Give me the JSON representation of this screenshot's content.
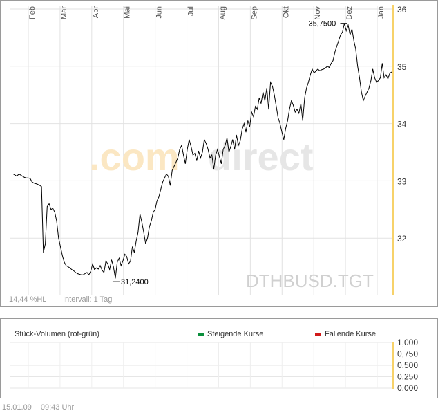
{
  "chart_data": [
    {
      "type": "line",
      "watermark": ".comdirect",
      "instrument": "DTHBUSD.TGT",
      "months": [
        "Feb",
        "Mär",
        "Apr",
        "Mai",
        "Jun",
        "Jul",
        "Aug",
        "Sep",
        "Okt",
        "Nov",
        "Dez",
        "Jan"
      ],
      "y_ticks": [
        32,
        33,
        34,
        35,
        36
      ],
      "ylim": [
        31.0,
        36.0
      ],
      "grid": true,
      "high_label": "35,7500",
      "low_label": "31,2400",
      "high_value": 35.75,
      "low_value": 31.24,
      "info_hl": "14,44 %HL",
      "info_interval": "Intervall: 1 Tag",
      "series": [
        {
          "values": [
            33.12,
            33.1,
            33.08,
            33.12,
            33.1,
            33.08,
            33.06,
            33.05,
            33.05,
            33.04,
            32.98,
            32.96,
            32.95,
            32.94,
            32.92,
            32.9,
            31.75,
            31.9,
            32.55,
            32.6,
            32.5,
            32.52,
            32.45,
            32.3,
            32.0,
            31.85,
            31.7,
            31.58,
            31.52,
            31.5,
            31.48,
            31.45,
            31.43,
            31.4,
            31.38,
            31.37,
            31.36,
            31.36,
            31.38,
            31.4,
            31.36,
            31.42,
            31.55,
            31.45,
            31.48,
            31.46,
            31.52,
            31.44,
            31.4,
            31.6,
            31.55,
            31.45,
            31.62,
            31.5,
            31.3,
            31.58,
            31.65,
            31.52,
            31.6,
            31.72,
            31.68,
            31.55,
            31.6,
            31.85,
            31.75,
            31.95,
            32.1,
            32.42,
            32.28,
            32.1,
            31.9,
            32.0,
            32.2,
            32.3,
            32.45,
            32.5,
            32.65,
            32.72,
            32.85,
            32.98,
            33.05,
            33.12,
            33.08,
            32.92,
            33.18,
            33.25,
            33.32,
            33.4,
            33.55,
            33.62,
            33.45,
            33.3,
            33.55,
            33.72,
            33.6,
            33.45,
            33.48,
            33.35,
            33.52,
            33.4,
            33.5,
            33.72,
            33.65,
            33.55,
            33.4,
            33.45,
            33.2,
            33.45,
            33.55,
            33.42,
            33.3,
            33.55,
            33.62,
            33.75,
            33.5,
            33.6,
            33.72,
            33.55,
            33.8,
            33.62,
            33.7,
            33.9,
            34.0,
            33.85,
            34.05,
            33.95,
            34.2,
            34.12,
            34.3,
            34.25,
            34.45,
            34.35,
            34.55,
            34.4,
            34.62,
            34.25,
            34.72,
            34.65,
            34.5,
            34.3,
            34.1,
            34.0,
            33.85,
            33.72,
            33.92,
            34.05,
            34.25,
            34.4,
            34.32,
            34.2,
            34.25,
            34.18,
            34.35,
            34.05,
            34.45,
            34.62,
            34.72,
            34.85,
            34.95,
            34.88,
            34.92,
            34.95,
            34.92,
            34.94,
            34.95,
            34.97,
            35.0,
            34.98,
            35.05,
            35.1,
            35.25,
            35.35,
            35.45,
            35.55,
            35.6,
            35.75,
            35.62,
            35.72,
            35.55,
            35.65,
            35.45,
            35.3,
            35.0,
            34.8,
            34.55,
            34.4,
            34.48,
            34.55,
            34.62,
            34.75,
            34.95,
            34.8,
            34.72,
            34.75,
            34.8,
            35.05,
            34.8,
            34.85,
            34.78,
            34.88,
            34.9
          ]
        }
      ]
    },
    {
      "type": "bar",
      "title": "Stück-Volumen (rot-grün)",
      "legend": [
        {
          "label": "Steigende Kurse",
          "color": "#0a8f3c"
        },
        {
          "label": "Fallende Kurse",
          "color": "#d11a1a"
        }
      ],
      "y_tick_labels": [
        "1,000",
        "0,750",
        "0,500",
        "0,250",
        "0,000"
      ],
      "values": []
    }
  ],
  "footer": {
    "date": "15.01.09",
    "time": "09:43 Uhr"
  },
  "colors": {
    "axis_bar": "#f7d26a",
    "grid": "#e2e2e2",
    "line": "#000000",
    "watermark_orange": "#fbe7c3",
    "watermark_gray": "#e6e6e6",
    "instrument_text": "#d0d0d0"
  }
}
